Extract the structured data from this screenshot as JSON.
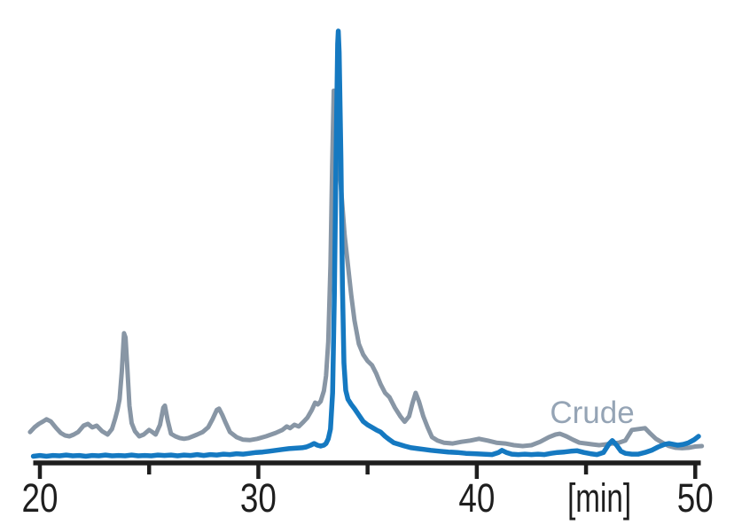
{
  "figure": {
    "background_color": "#ffffff",
    "axis_color": "#1e1e1e"
  },
  "chart_data": {
    "type": "line",
    "title": "",
    "xlabel": "[min]",
    "ylabel": "",
    "xlim": [
      20,
      50
    ],
    "ylim": [
      0,
      105
    ],
    "grid": false,
    "y_axis_visible": false,
    "legend_position": "annotation-inline",
    "axis_color": "#1e1e1e",
    "x_ticks": [
      {
        "value": 20,
        "label": "20",
        "major": true
      },
      {
        "value": 25,
        "label": "",
        "major": false
      },
      {
        "value": 30,
        "label": "30",
        "major": true
      },
      {
        "value": 35,
        "label": "",
        "major": false
      },
      {
        "value": 40,
        "label": "40",
        "major": true
      },
      {
        "value": 45,
        "label": "[min]",
        "major": false,
        "label_dx": 15
      },
      {
        "value": 50,
        "label": "50",
        "major": true
      }
    ],
    "annotations": [
      {
        "text": "Crude",
        "x": 45.28,
        "y": 7.9,
        "color": "#95a4b5"
      }
    ],
    "series": [
      {
        "id": "crude",
        "label": "Crude",
        "color": "#8896a5",
        "line_width": 5,
        "points": [
          [
            19.55,
            5.8
          ],
          [
            19.75,
            6.9
          ],
          [
            19.95,
            7.7
          ],
          [
            20.15,
            8.3
          ],
          [
            20.3,
            8.8
          ],
          [
            20.5,
            8.3
          ],
          [
            20.75,
            6.7
          ],
          [
            20.95,
            5.6
          ],
          [
            21.15,
            5.0
          ],
          [
            21.35,
            4.8
          ],
          [
            21.55,
            5.2
          ],
          [
            21.75,
            5.8
          ],
          [
            22.0,
            7.3
          ],
          [
            22.2,
            7.7
          ],
          [
            22.4,
            6.9
          ],
          [
            22.6,
            7.3
          ],
          [
            22.85,
            6.0
          ],
          [
            23.1,
            5.2
          ],
          [
            23.3,
            6.5
          ],
          [
            23.45,
            9.0
          ],
          [
            23.55,
            11.0
          ],
          [
            23.65,
            13.5
          ],
          [
            23.75,
            20.0
          ],
          [
            23.85,
            29.0
          ],
          [
            23.92,
            28.0
          ],
          [
            24.0,
            21.0
          ],
          [
            24.1,
            12.0
          ],
          [
            24.2,
            7.9
          ],
          [
            24.35,
            6.0
          ],
          [
            24.55,
            4.8
          ],
          [
            24.75,
            5.2
          ],
          [
            25.0,
            6.3
          ],
          [
            25.15,
            5.8
          ],
          [
            25.3,
            5.2
          ],
          [
            25.5,
            7.5
          ],
          [
            25.65,
            11.5
          ],
          [
            25.72,
            12.0
          ],
          [
            25.85,
            8.5
          ],
          [
            26.0,
            5.4
          ],
          [
            26.2,
            4.8
          ],
          [
            26.4,
            4.4
          ],
          [
            26.6,
            4.2
          ],
          [
            26.8,
            4.4
          ],
          [
            27.0,
            4.8
          ],
          [
            27.2,
            5.2
          ],
          [
            27.45,
            5.8
          ],
          [
            27.7,
            6.9
          ],
          [
            27.9,
            8.8
          ],
          [
            28.1,
            11.0
          ],
          [
            28.2,
            11.3
          ],
          [
            28.35,
            9.8
          ],
          [
            28.5,
            8.0
          ],
          [
            28.7,
            5.8
          ],
          [
            29.0,
            4.6
          ],
          [
            29.3,
            4.0
          ],
          [
            29.6,
            3.9
          ],
          [
            29.95,
            4.2
          ],
          [
            30.35,
            4.8
          ],
          [
            30.8,
            5.6
          ],
          [
            31.1,
            6.3
          ],
          [
            31.3,
            7.1
          ],
          [
            31.45,
            6.7
          ],
          [
            31.65,
            7.5
          ],
          [
            31.85,
            7.1
          ],
          [
            32.05,
            8.1
          ],
          [
            32.25,
            9.2
          ],
          [
            32.45,
            11.0
          ],
          [
            32.6,
            12.7
          ],
          [
            32.72,
            12.3
          ],
          [
            32.85,
            13.0
          ],
          [
            33.0,
            15.5
          ],
          [
            33.1,
            19.0
          ],
          [
            33.2,
            27.0
          ],
          [
            33.3,
            45.0
          ],
          [
            33.38,
            68.0
          ],
          [
            33.45,
            86.0
          ],
          [
            33.55,
            80.0
          ],
          [
            33.65,
            72.0
          ],
          [
            33.8,
            62.0
          ],
          [
            33.95,
            52.0
          ],
          [
            34.1,
            45.0
          ],
          [
            34.25,
            38.0
          ],
          [
            34.4,
            32.0
          ],
          [
            34.6,
            26.5
          ],
          [
            34.8,
            24.0
          ],
          [
            35.0,
            22.5
          ],
          [
            35.2,
            21.5
          ],
          [
            35.4,
            19.5
          ],
          [
            35.6,
            17.0
          ],
          [
            35.8,
            15.0
          ],
          [
            36.0,
            14.0
          ],
          [
            36.25,
            11.5
          ],
          [
            36.5,
            9.5
          ],
          [
            36.7,
            8.2
          ],
          [
            36.9,
            9.5
          ],
          [
            37.05,
            12.5
          ],
          [
            37.2,
            15.0
          ],
          [
            37.35,
            13.0
          ],
          [
            37.55,
            9.5
          ],
          [
            37.75,
            6.9
          ],
          [
            37.95,
            4.6
          ],
          [
            38.2,
            3.8
          ],
          [
            38.5,
            3.3
          ],
          [
            38.9,
            3.1
          ],
          [
            39.3,
            3.5
          ],
          [
            39.7,
            3.8
          ],
          [
            40.1,
            4.2
          ],
          [
            40.5,
            3.8
          ],
          [
            40.9,
            3.3
          ],
          [
            41.3,
            3.1
          ],
          [
            41.7,
            2.7
          ],
          [
            42.1,
            2.5
          ],
          [
            42.5,
            2.7
          ],
          [
            42.9,
            3.5
          ],
          [
            43.3,
            4.6
          ],
          [
            43.6,
            5.2
          ],
          [
            43.8,
            5.4
          ],
          [
            44.1,
            4.8
          ],
          [
            44.4,
            4.0
          ],
          [
            44.7,
            3.3
          ],
          [
            45.0,
            3.1
          ],
          [
            45.3,
            2.9
          ],
          [
            45.6,
            2.7
          ],
          [
            45.9,
            2.9
          ],
          [
            46.2,
            3.1
          ],
          [
            46.5,
            3.3
          ],
          [
            46.8,
            3.8
          ],
          [
            47.1,
            6.3
          ],
          [
            47.4,
            6.5
          ],
          [
            47.7,
            6.7
          ],
          [
            47.95,
            5.4
          ],
          [
            48.2,
            4.2
          ],
          [
            48.5,
            3.3
          ],
          [
            48.8,
            2.5
          ],
          [
            49.1,
            2.1
          ],
          [
            49.4,
            2.0
          ],
          [
            49.7,
            2.1
          ],
          [
            50.0,
            2.4
          ],
          [
            50.3,
            2.5
          ]
        ]
      },
      {
        "id": "blue-trace",
        "label": "",
        "color": "#1579c1",
        "line_width": 5.5,
        "points": [
          [
            19.7,
            0.1
          ],
          [
            20.0,
            0.3
          ],
          [
            20.3,
            0.1
          ],
          [
            20.6,
            0.3
          ],
          [
            20.9,
            0.2
          ],
          [
            21.2,
            0.4
          ],
          [
            21.5,
            0.2
          ],
          [
            21.8,
            0.3
          ],
          [
            22.1,
            0.1
          ],
          [
            22.4,
            0.3
          ],
          [
            22.7,
            0.2
          ],
          [
            23.0,
            0.4
          ],
          [
            23.3,
            0.2
          ],
          [
            23.6,
            0.3
          ],
          [
            23.9,
            0.2
          ],
          [
            24.2,
            0.4
          ],
          [
            24.5,
            0.2
          ],
          [
            24.8,
            0.3
          ],
          [
            25.1,
            0.2
          ],
          [
            25.4,
            0.4
          ],
          [
            25.7,
            0.3
          ],
          [
            26.0,
            0.4
          ],
          [
            26.3,
            0.2
          ],
          [
            26.6,
            0.4
          ],
          [
            26.9,
            0.3
          ],
          [
            27.2,
            0.5
          ],
          [
            27.5,
            0.3
          ],
          [
            27.8,
            0.5
          ],
          [
            28.1,
            0.4
          ],
          [
            28.4,
            0.6
          ],
          [
            28.7,
            0.5
          ],
          [
            29.0,
            0.7
          ],
          [
            29.3,
            0.6
          ],
          [
            29.6,
            0.8
          ],
          [
            29.9,
            1.0
          ],
          [
            30.2,
            1.1
          ],
          [
            30.5,
            1.3
          ],
          [
            30.8,
            1.5
          ],
          [
            31.1,
            1.7
          ],
          [
            31.4,
            1.9
          ],
          [
            31.7,
            2.0
          ],
          [
            32.0,
            2.1
          ],
          [
            32.2,
            2.3
          ],
          [
            32.4,
            2.7
          ],
          [
            32.55,
            3.1
          ],
          [
            32.7,
            2.7
          ],
          [
            32.85,
            2.5
          ],
          [
            33.0,
            2.7
          ],
          [
            33.1,
            3.1
          ],
          [
            33.2,
            4.2
          ],
          [
            33.3,
            6.5
          ],
          [
            33.4,
            15.0
          ],
          [
            33.48,
            38.0
          ],
          [
            33.56,
            72.0
          ],
          [
            33.63,
            97.0
          ],
          [
            33.66,
            100.0
          ],
          [
            33.7,
            95.0
          ],
          [
            33.78,
            70.0
          ],
          [
            33.85,
            40.0
          ],
          [
            33.92,
            22.0
          ],
          [
            34.0,
            15.6
          ],
          [
            34.1,
            13.5
          ],
          [
            34.25,
            12.3
          ],
          [
            34.4,
            11.3
          ],
          [
            34.6,
            9.8
          ],
          [
            34.8,
            8.3
          ],
          [
            35.0,
            7.5
          ],
          [
            35.2,
            6.9
          ],
          [
            35.4,
            6.3
          ],
          [
            35.6,
            5.8
          ],
          [
            35.8,
            4.8
          ],
          [
            36.0,
            4.0
          ],
          [
            36.2,
            3.3
          ],
          [
            36.45,
            2.9
          ],
          [
            36.7,
            2.5
          ],
          [
            37.0,
            2.1
          ],
          [
            37.3,
            1.9
          ],
          [
            37.6,
            1.7
          ],
          [
            37.9,
            1.5
          ],
          [
            38.3,
            1.3
          ],
          [
            38.7,
            1.1
          ],
          [
            39.1,
            1.0
          ],
          [
            39.5,
            0.8
          ],
          [
            39.9,
            0.7
          ],
          [
            40.3,
            0.6
          ],
          [
            40.7,
            0.5
          ],
          [
            41.0,
            1.0
          ],
          [
            41.15,
            1.5
          ],
          [
            41.35,
            1.0
          ],
          [
            41.6,
            0.6
          ],
          [
            41.9,
            0.5
          ],
          [
            42.2,
            0.6
          ],
          [
            42.5,
            0.5
          ],
          [
            42.8,
            0.6
          ],
          [
            43.1,
            0.5
          ],
          [
            43.4,
            0.8
          ],
          [
            43.7,
            1.0
          ],
          [
            44.0,
            1.1
          ],
          [
            44.3,
            1.3
          ],
          [
            44.6,
            1.4
          ],
          [
            44.9,
            1.0
          ],
          [
            45.2,
            0.7
          ],
          [
            45.5,
            0.5
          ],
          [
            45.8,
            1.0
          ],
          [
            46.05,
            3.0
          ],
          [
            46.2,
            3.8
          ],
          [
            46.4,
            2.7
          ],
          [
            46.6,
            1.3
          ],
          [
            46.8,
            0.8
          ],
          [
            47.1,
            0.6
          ],
          [
            47.4,
            0.6
          ],
          [
            47.7,
            1.0
          ],
          [
            48.0,
            1.5
          ],
          [
            48.3,
            2.3
          ],
          [
            48.6,
            2.9
          ],
          [
            48.8,
            3.1
          ],
          [
            49.0,
            2.9
          ],
          [
            49.2,
            2.7
          ],
          [
            49.45,
            2.9
          ],
          [
            49.7,
            3.3
          ],
          [
            49.95,
            4.0
          ],
          [
            50.15,
            4.8
          ]
        ]
      }
    ]
  }
}
